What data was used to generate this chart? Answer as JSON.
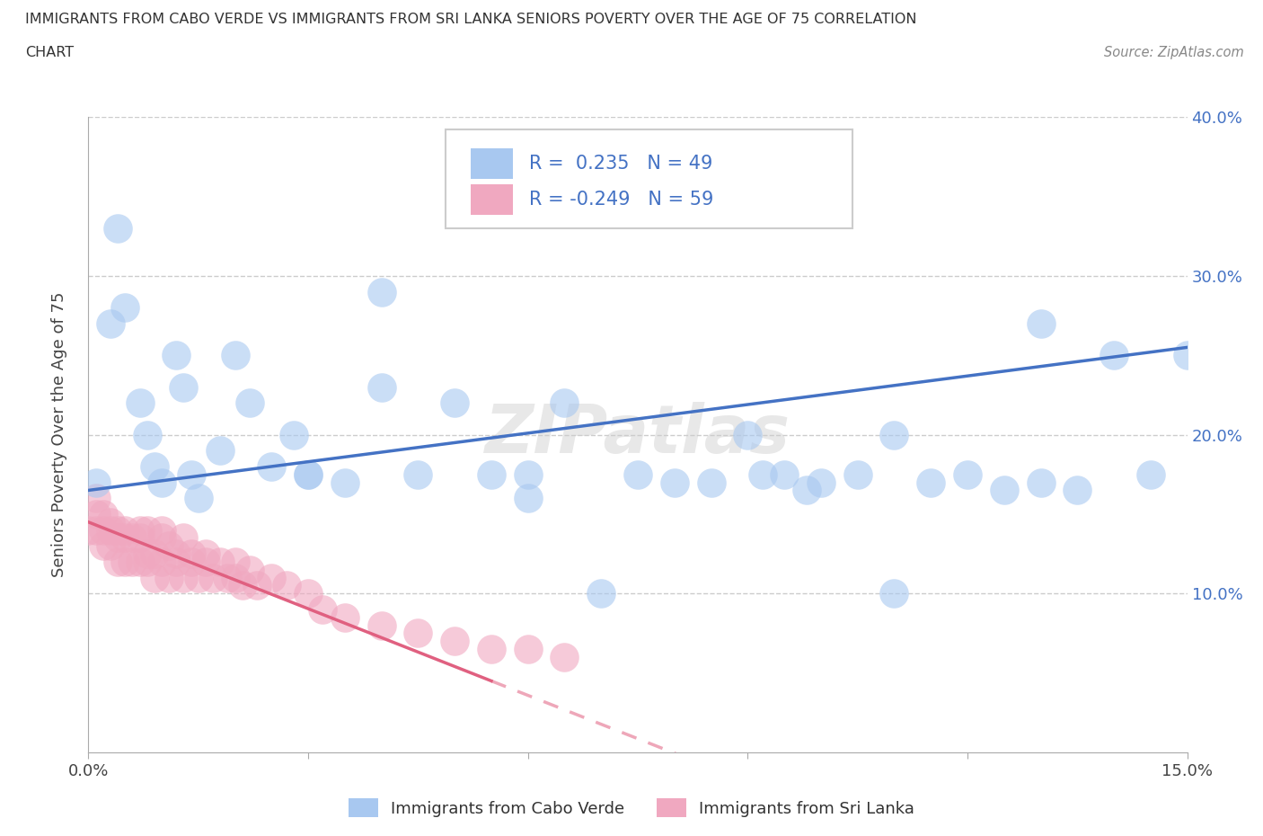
{
  "title_line1": "IMMIGRANTS FROM CABO VERDE VS IMMIGRANTS FROM SRI LANKA SENIORS POVERTY OVER THE AGE OF 75 CORRELATION",
  "title_line2": "CHART",
  "source": "Source: ZipAtlas.com",
  "ylabel": "Seniors Poverty Over the Age of 75",
  "xlim": [
    0.0,
    0.15
  ],
  "ylim": [
    0.0,
    0.4
  ],
  "cabo_verde_R": 0.235,
  "cabo_verde_N": 49,
  "sri_lanka_R": -0.249,
  "sri_lanka_N": 59,
  "cabo_verde_color": "#a8c8f0",
  "sri_lanka_color": "#f0a8c0",
  "cabo_verde_line_color": "#4472c4",
  "sri_lanka_line_color": "#e06080",
  "legend_label_cabo": "Immigrants from Cabo Verde",
  "legend_label_sri": "Immigrants from Sri Lanka",
  "cabo_verde_x": [
    0.001,
    0.003,
    0.004,
    0.005,
    0.007,
    0.008,
    0.009,
    0.01,
    0.012,
    0.013,
    0.014,
    0.015,
    0.018,
    0.02,
    0.022,
    0.025,
    0.028,
    0.03,
    0.04,
    0.04,
    0.045,
    0.05,
    0.055,
    0.06,
    0.065,
    0.07,
    0.075,
    0.08,
    0.09,
    0.095,
    0.1,
    0.105,
    0.11,
    0.115,
    0.12,
    0.125,
    0.13,
    0.135,
    0.14,
    0.145,
    0.15,
    0.085,
    0.092,
    0.098,
    0.11,
    0.03,
    0.035,
    0.06,
    0.13
  ],
  "cabo_verde_y": [
    0.17,
    0.27,
    0.33,
    0.28,
    0.22,
    0.2,
    0.18,
    0.17,
    0.25,
    0.23,
    0.175,
    0.16,
    0.19,
    0.25,
    0.22,
    0.18,
    0.2,
    0.175,
    0.29,
    0.23,
    0.175,
    0.22,
    0.175,
    0.16,
    0.22,
    0.1,
    0.175,
    0.17,
    0.2,
    0.175,
    0.17,
    0.175,
    0.1,
    0.17,
    0.175,
    0.165,
    0.27,
    0.165,
    0.25,
    0.175,
    0.25,
    0.17,
    0.175,
    0.165,
    0.2,
    0.175,
    0.17,
    0.175,
    0.17
  ],
  "sri_lanka_x": [
    0.0,
    0.001,
    0.001,
    0.001,
    0.002,
    0.002,
    0.002,
    0.003,
    0.003,
    0.003,
    0.004,
    0.004,
    0.004,
    0.005,
    0.005,
    0.005,
    0.006,
    0.006,
    0.007,
    0.007,
    0.007,
    0.008,
    0.008,
    0.008,
    0.009,
    0.009,
    0.01,
    0.01,
    0.01,
    0.011,
    0.011,
    0.012,
    0.012,
    0.013,
    0.013,
    0.014,
    0.014,
    0.015,
    0.016,
    0.016,
    0.017,
    0.018,
    0.019,
    0.02,
    0.02,
    0.021,
    0.022,
    0.023,
    0.025,
    0.027,
    0.03,
    0.032,
    0.035,
    0.04,
    0.045,
    0.05,
    0.055,
    0.06,
    0.065
  ],
  "sri_lanka_y": [
    0.14,
    0.15,
    0.16,
    0.14,
    0.13,
    0.15,
    0.14,
    0.13,
    0.14,
    0.145,
    0.12,
    0.135,
    0.14,
    0.12,
    0.135,
    0.14,
    0.12,
    0.135,
    0.12,
    0.135,
    0.14,
    0.12,
    0.125,
    0.14,
    0.11,
    0.125,
    0.12,
    0.135,
    0.14,
    0.11,
    0.13,
    0.12,
    0.125,
    0.11,
    0.135,
    0.12,
    0.125,
    0.11,
    0.12,
    0.125,
    0.11,
    0.12,
    0.11,
    0.11,
    0.12,
    0.105,
    0.115,
    0.105,
    0.11,
    0.105,
    0.1,
    0.09,
    0.085,
    0.08,
    0.075,
    0.07,
    0.065,
    0.065,
    0.06
  ]
}
